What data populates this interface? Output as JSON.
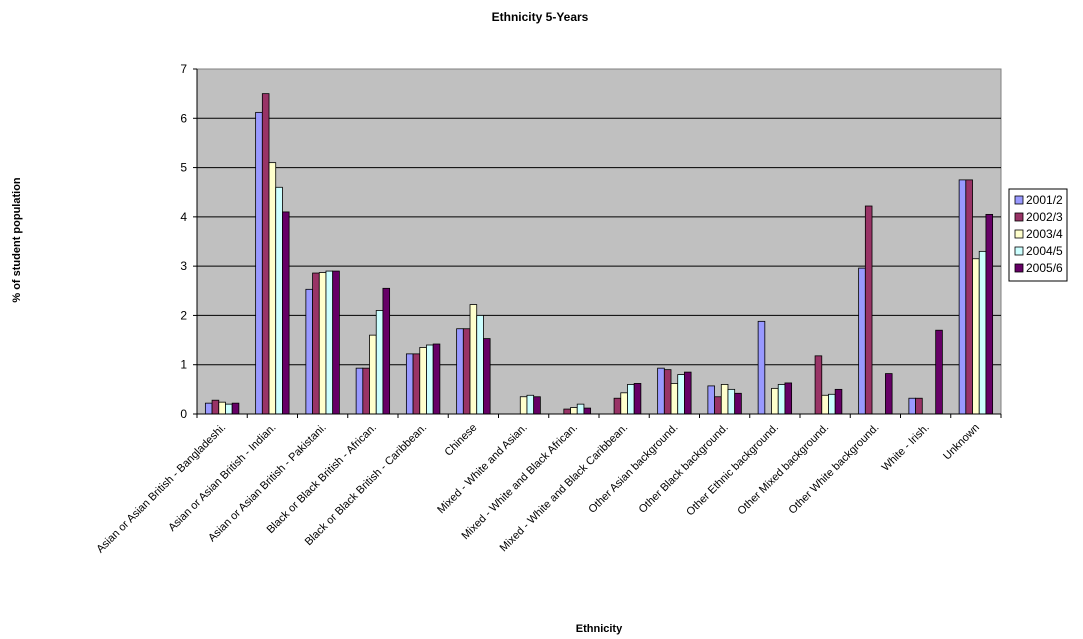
{
  "chart_data": {
    "type": "bar",
    "title": "Ethnicity 5-Years",
    "xlabel": "Ethnicity",
    "ylabel": "% of student population",
    "ylim": [
      0,
      7
    ],
    "yticks": [
      0,
      1,
      2,
      3,
      4,
      5,
      6,
      7
    ],
    "grid": "horizontal major gridlines",
    "legend_position": "right",
    "plot_background": "#c0c0c0",
    "categories": [
      "Asian or Asian British - Bangladeshi.",
      "Asian or Asian British - Indian.",
      "Asian or Asian British - Pakistani.",
      "Black or Black British - African.",
      "Black or Black British - Caribbean.",
      "Chinese",
      "Mixed - White and Asian.",
      "Mixed - White and Black African.",
      "Mixed - White and Black Caribbean.",
      "Other Asian background.",
      "Other Black background.",
      "Other Ethnic background.",
      "Other Mixed background.",
      "Other White background.",
      "White - Irish.",
      "Unknown"
    ],
    "series": [
      {
        "name": "2001/2",
        "color": "#9999ff",
        "values": [
          0.22,
          6.12,
          2.53,
          0.93,
          1.22,
          1.73,
          0,
          0,
          0,
          0.93,
          0.57,
          1.88,
          0,
          2.96,
          0.32,
          4.75
        ]
      },
      {
        "name": "2002/3",
        "color": "#993366",
        "values": [
          0.28,
          6.5,
          2.86,
          0.93,
          1.22,
          1.73,
          0,
          0.1,
          0.32,
          0.9,
          0.35,
          0,
          1.18,
          4.22,
          0.32,
          4.75
        ]
      },
      {
        "name": "2003/4",
        "color": "#ffffcc",
        "values": [
          0.24,
          5.1,
          2.87,
          1.6,
          1.35,
          2.22,
          0.35,
          0.13,
          0.43,
          0.62,
          0.6,
          0.52,
          0.38,
          0,
          0,
          3.15
        ]
      },
      {
        "name": "2004/5",
        "color": "#ccffff",
        "values": [
          0.2,
          4.6,
          2.9,
          2.1,
          1.4,
          2.0,
          0.38,
          0.2,
          0.6,
          0.8,
          0.5,
          0.6,
          0.4,
          0,
          0,
          3.3
        ]
      },
      {
        "name": "2005/6",
        "color": "#660066",
        "values": [
          0.22,
          4.1,
          2.9,
          2.55,
          1.42,
          1.53,
          0.35,
          0.12,
          0.62,
          0.85,
          0.42,
          0.63,
          0.5,
          0.82,
          1.7,
          4.05
        ]
      }
    ]
  }
}
